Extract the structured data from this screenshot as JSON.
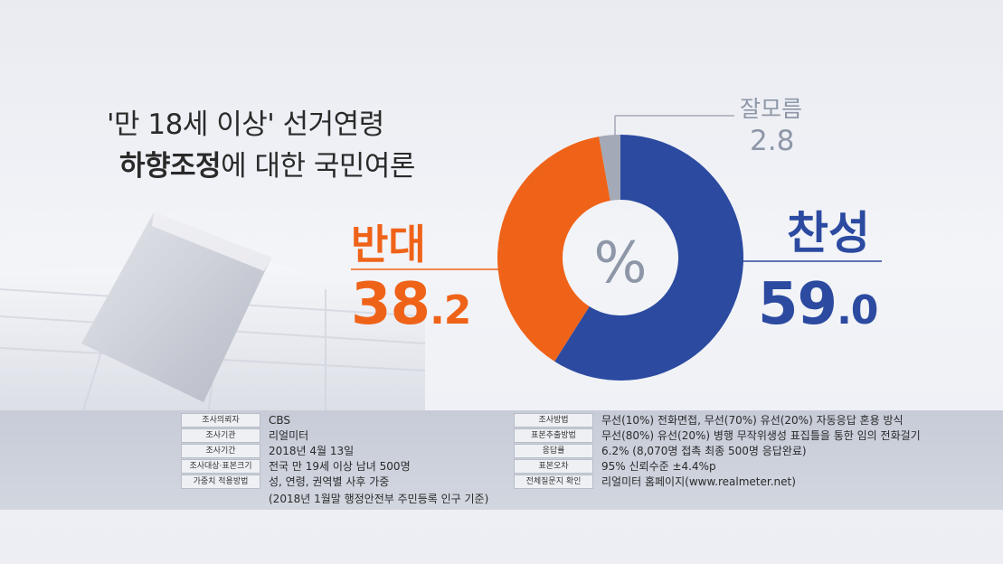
{
  "title": {
    "line1": "'만 18세 이상' 선거연령",
    "line2_bold": "하향조정",
    "line2_rest": "에 대한 국민여론"
  },
  "colors": {
    "oppose": "#ef6319",
    "agree": "#2b4aa0",
    "dont_know": "#a3a9b6"
  },
  "chart_data": {
    "type": "pie",
    "center_label": "%",
    "slices": [
      {
        "label": "찬성",
        "value": 59.0,
        "color": "#2b4aa0"
      },
      {
        "label": "반대",
        "value": 38.2,
        "color": "#ef6319"
      },
      {
        "label": "잘모름",
        "value": 2.8,
        "color": "#a3a9b6"
      }
    ]
  },
  "labels": {
    "agree": "찬성",
    "agree_value_int": "59",
    "agree_value_dec": ".0",
    "oppose": "반대",
    "oppose_value_int": "38",
    "oppose_value_dec": ".2",
    "dont_know": "잘모름",
    "dont_know_value": "2.8"
  },
  "info": {
    "left": [
      {
        "key": "조사의뢰자",
        "value": "CBS"
      },
      {
        "key": "조사기관",
        "value": "리얼미터"
      },
      {
        "key": "조사기간",
        "value": "2018년 4월 13일"
      },
      {
        "key": "조사대상·표본크기",
        "value": "전국 만 19세 이상 남녀 500명"
      },
      {
        "key": "가중치 적용방법",
        "value": "성, 연령, 권역별 사후 가중"
      }
    ],
    "left_extra": "(2018년 1월말 행정안전부 주민등록 인구 기준)",
    "right": [
      {
        "key": "조사방법",
        "value": "무선(10%) 전화면접, 무선(70%) 유선(20%) 자동응답 혼용 방식"
      },
      {
        "key": "표본추출방법",
        "value": "무선(80%) 유선(20%) 병행 무작위생성 표집틀을 통한 임의 전화걸기"
      },
      {
        "key": "응답률",
        "value": "6.2% (8,070명 접촉 최종 500명 응답완료)"
      },
      {
        "key": "표본오차",
        "value": "95% 신뢰수준 ±4.4%p"
      },
      {
        "key": "전체질문지 확인",
        "value": "리얼미터 홈페이지(www.realmeter.net)"
      }
    ]
  }
}
